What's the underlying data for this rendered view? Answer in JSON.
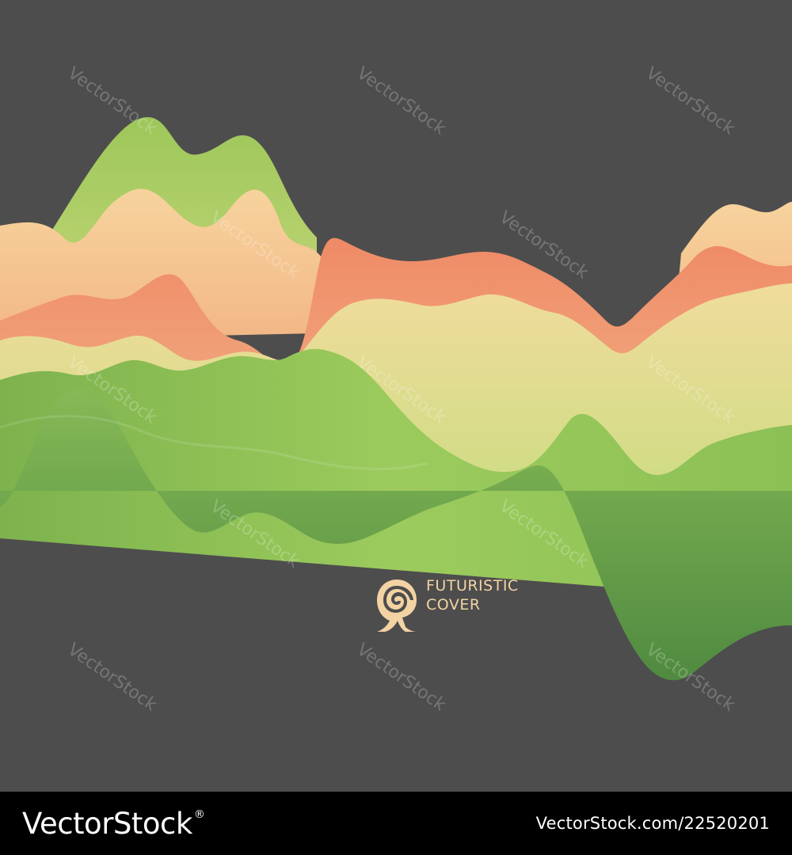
{
  "artwork": {
    "logo_text_line1": "FUTURISTIC",
    "logo_text_line2": "COVER",
    "logo_icon": "nautilus-shell-icon"
  },
  "watermark": {
    "text": "VectorStock"
  },
  "footer": {
    "brand": "VectorStock",
    "registered_mark": "®",
    "image_id": "VectorStock.com/22520201"
  },
  "colors": {
    "background": "#4d4d4d",
    "footer_background": "#000000",
    "footer_text": "#ffffff",
    "logo_color": "#f3d3a3",
    "wave_green_dark": "#5c9a47",
    "wave_green": "#8cbf56",
    "wave_yellow": "#e6e29a",
    "wave_peach": "#f6cf9a",
    "wave_coral": "#ee8464"
  }
}
